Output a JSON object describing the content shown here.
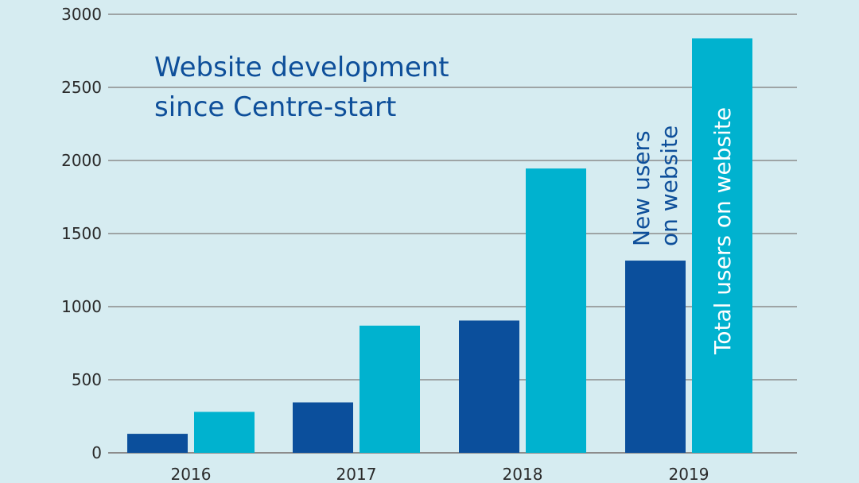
{
  "chart_data": {
    "type": "bar",
    "title_lines": [
      "Website development",
      "since Centre-start"
    ],
    "categories": [
      "2016",
      "2017",
      "2018",
      "2019"
    ],
    "series": [
      {
        "name_lines": [
          "New users",
          "on website"
        ],
        "color": "#0b4f9c",
        "values": [
          130,
          345,
          905,
          1315
        ]
      },
      {
        "name_lines": [
          "Total users on website"
        ],
        "color": "#00b2cf",
        "values": [
          280,
          870,
          1945,
          2835
        ]
      }
    ],
    "ylim": [
      0,
      3000
    ],
    "yticks": [
      "0",
      "500",
      "1000",
      "1500",
      "2000",
      "2500",
      "3000"
    ],
    "grid": true,
    "colors": {
      "background": "#d6ecf1",
      "grid": "#8c8c8c",
      "title": "#0e4f9a",
      "total_label": "#ffffff",
      "new_label": "#0e4f9a"
    }
  }
}
